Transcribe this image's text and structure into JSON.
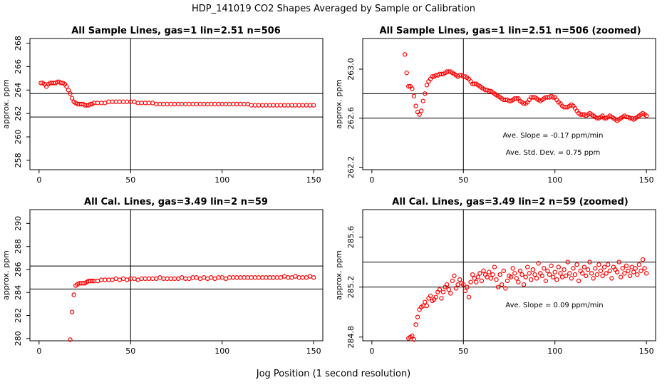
{
  "figure": {
    "title": "HDP_141019  CO2 Shapes Averaged by Sample or Calibration",
    "xlabel": "Jog Position (1 second resolution)"
  },
  "chart_data": [
    {
      "type": "scatter",
      "title": "All Sample Lines, gas=1 lin=2.51 n=506",
      "xlabel": "",
      "ylabel": "approx. ppm",
      "xlim": [
        -5,
        155
      ],
      "ylim": [
        257.2,
        268.4
      ],
      "xticks": [
        0,
        50,
        100,
        150
      ],
      "yticks": [
        258,
        260,
        262,
        264,
        266,
        268
      ],
      "ytick_labels": [
        "258",
        "260",
        "262",
        "264",
        "266",
        "268"
      ],
      "vline": 50,
      "hlines": [
        261.7,
        263.7
      ],
      "color": "#ff0000",
      "series": {
        "x": [
          1,
          2,
          3,
          4,
          5,
          6,
          7,
          8,
          9,
          10,
          11,
          12,
          13,
          14,
          15,
          16,
          17,
          18,
          19,
          20,
          21,
          22,
          23,
          24,
          25,
          26,
          27,
          28,
          29,
          30,
          32,
          34,
          36,
          38,
          40,
          42,
          44,
          46,
          48,
          50,
          52,
          54,
          56,
          58,
          60,
          62,
          64,
          66,
          68,
          70,
          72,
          74,
          76,
          78,
          80,
          82,
          84,
          86,
          88,
          90,
          92,
          94,
          96,
          98,
          100,
          102,
          104,
          106,
          108,
          110,
          112,
          114,
          116,
          118,
          120,
          122,
          124,
          126,
          128,
          130,
          132,
          134,
          136,
          138,
          140,
          142,
          144,
          146,
          148,
          150
        ],
        "y": [
          264.6,
          264.6,
          264.5,
          264.3,
          264.5,
          264.6,
          264.6,
          264.6,
          264.6,
          264.7,
          264.7,
          264.6,
          264.6,
          264.5,
          264.3,
          264.0,
          263.7,
          263.3,
          263.0,
          262.9,
          262.8,
          262.8,
          262.8,
          262.8,
          262.7,
          262.7,
          262.7,
          262.8,
          262.8,
          262.9,
          262.9,
          262.9,
          262.9,
          263.0,
          263.0,
          263.0,
          263.0,
          263.0,
          263.0,
          263.0,
          263.0,
          262.9,
          262.9,
          262.9,
          262.9,
          262.9,
          262.8,
          262.8,
          262.8,
          262.8,
          262.8,
          262.8,
          262.8,
          262.8,
          262.8,
          262.8,
          262.8,
          262.8,
          262.8,
          262.8,
          262.8,
          262.8,
          262.8,
          262.8,
          262.8,
          262.8,
          262.8,
          262.8,
          262.8,
          262.8,
          262.8,
          262.8,
          262.7,
          262.7,
          262.7,
          262.7,
          262.7,
          262.7,
          262.7,
          262.7,
          262.7,
          262.7,
          262.7,
          262.7,
          262.7,
          262.7,
          262.7,
          262.7,
          262.7,
          262.7
        ]
      },
      "annotations": []
    },
    {
      "type": "scatter",
      "title": "All Sample Lines, gas=1 lin=2.51 n=506 (zoomed)",
      "xlabel": "",
      "ylabel": "approx. ppm",
      "xlim": [
        -5,
        155
      ],
      "ylim": [
        262.18,
        263.25
      ],
      "xticks": [
        0,
        50,
        100,
        150
      ],
      "yticks": [
        262.2,
        262.6,
        263.0
      ],
      "ytick_labels": [
        "262.2",
        "262.6",
        "263.0"
      ],
      "vline": 50,
      "hlines": [
        262.6,
        262.8
      ],
      "color": "#ff0000",
      "series": {
        "x": [
          18,
          19,
          20,
          21,
          22,
          23,
          24,
          25,
          26,
          27,
          28,
          29,
          30,
          31,
          32,
          33,
          34,
          35,
          36,
          37,
          38,
          39,
          40,
          41,
          42,
          43,
          44,
          45,
          46,
          47,
          48,
          49,
          50,
          51,
          52,
          53,
          54,
          55,
          56,
          57,
          58,
          59,
          60,
          61,
          62,
          63,
          64,
          65,
          66,
          67,
          68,
          69,
          70,
          71,
          72,
          73,
          74,
          75,
          76,
          77,
          78,
          79,
          80,
          81,
          82,
          83,
          84,
          85,
          86,
          87,
          88,
          89,
          90,
          91,
          92,
          93,
          94,
          95,
          96,
          97,
          98,
          99,
          100,
          101,
          102,
          103,
          104,
          105,
          106,
          107,
          108,
          109,
          110,
          111,
          112,
          113,
          114,
          115,
          116,
          117,
          118,
          119,
          120,
          121,
          122,
          123,
          124,
          125,
          126,
          127,
          128,
          129,
          130,
          131,
          132,
          133,
          134,
          135,
          136,
          137,
          138,
          139,
          140,
          141,
          142,
          143,
          144,
          145,
          146,
          147,
          148,
          149,
          150
        ],
        "y": [
          263.12,
          262.97,
          262.86,
          262.86,
          262.84,
          262.78,
          262.7,
          262.65,
          262.63,
          262.66,
          262.74,
          262.8,
          262.87,
          262.9,
          262.92,
          262.94,
          262.94,
          262.95,
          262.95,
          262.96,
          262.96,
          262.96,
          262.97,
          262.98,
          262.98,
          262.98,
          262.97,
          262.96,
          262.95,
          262.94,
          262.95,
          262.95,
          262.94,
          262.94,
          262.93,
          262.92,
          262.9,
          262.88,
          262.88,
          262.88,
          262.87,
          262.86,
          262.85,
          262.84,
          262.83,
          262.83,
          262.82,
          262.82,
          262.81,
          262.8,
          262.79,
          262.78,
          262.77,
          262.76,
          262.75,
          262.75,
          262.75,
          262.74,
          262.74,
          262.75,
          262.76,
          262.76,
          262.76,
          262.74,
          262.73,
          262.72,
          262.72,
          262.73,
          262.75,
          262.77,
          262.77,
          262.77,
          262.76,
          262.75,
          262.74,
          262.75,
          262.76,
          262.77,
          262.77,
          262.77,
          262.78,
          262.77,
          262.77,
          262.75,
          262.73,
          262.72,
          262.7,
          262.69,
          262.69,
          262.69,
          262.7,
          262.71,
          262.7,
          262.68,
          262.66,
          262.64,
          262.63,
          262.63,
          262.63,
          262.62,
          262.63,
          262.64,
          262.63,
          262.62,
          262.61,
          262.6,
          262.6,
          262.61,
          262.62,
          262.6,
          262.6,
          262.61,
          262.62,
          262.61,
          262.6,
          262.59,
          262.58,
          262.59,
          262.6,
          262.61,
          262.62,
          262.61,
          262.61,
          262.6,
          262.6,
          262.59,
          262.6,
          262.61,
          262.62,
          262.63,
          262.64,
          262.63,
          262.62
        ]
      },
      "annotations": [
        "Ave. Slope =  -0.17  ppm/min",
        "Ave. Std. Dev. =  0.75  ppm"
      ]
    },
    {
      "type": "scatter",
      "title": "All Cal. Lines, gas=3.49 lin=2 n=59",
      "xlabel": "",
      "ylabel": "approx. ppm",
      "xlim": [
        -5,
        155
      ],
      "ylim": [
        279.8,
        291.2
      ],
      "xticks": [
        0,
        50,
        100,
        150
      ],
      "yticks": [
        280,
        282,
        284,
        286,
        288,
        290
      ],
      "ytick_labels": [
        "280",
        "282",
        "284",
        "286",
        "288",
        "290"
      ],
      "vline": 50,
      "hlines": [
        284.3,
        286.3
      ],
      "color": "#ff0000",
      "series": {
        "x": [
          17,
          18,
          19,
          20,
          21,
          22,
          23,
          24,
          25,
          26,
          27,
          28,
          29,
          30,
          32,
          34,
          36,
          38,
          40,
          42,
          44,
          46,
          48,
          50,
          52,
          54,
          56,
          58,
          60,
          62,
          64,
          66,
          68,
          70,
          72,
          74,
          76,
          78,
          80,
          82,
          84,
          86,
          88,
          90,
          92,
          94,
          96,
          98,
          100,
          102,
          104,
          106,
          108,
          110,
          112,
          114,
          116,
          118,
          120,
          122,
          124,
          126,
          128,
          130,
          132,
          134,
          136,
          138,
          140,
          142,
          144,
          146,
          148,
          150
        ],
        "y": [
          279.9,
          282.3,
          283.8,
          284.6,
          284.7,
          284.8,
          284.8,
          284.8,
          284.8,
          284.9,
          285.0,
          285.0,
          285.0,
          285.0,
          285.0,
          285.1,
          285.1,
          285.1,
          285.1,
          285.2,
          285.1,
          285.2,
          285.1,
          285.2,
          285.2,
          285.1,
          285.2,
          285.2,
          285.2,
          285.2,
          285.2,
          285.3,
          285.2,
          285.2,
          285.2,
          285.2,
          285.2,
          285.3,
          285.2,
          285.2,
          285.3,
          285.3,
          285.2,
          285.3,
          285.2,
          285.3,
          285.2,
          285.3,
          285.3,
          285.2,
          285.3,
          285.3,
          285.3,
          285.3,
          285.3,
          285.3,
          285.3,
          285.3,
          285.3,
          285.3,
          285.3,
          285.3,
          285.3,
          285.3,
          285.3,
          285.4,
          285.3,
          285.3,
          285.4,
          285.3,
          285.3,
          285.3,
          285.4,
          285.3
        ]
      },
      "annotations": []
    },
    {
      "type": "scatter",
      "title": "All Cal. Lines, gas=3.49 lin=2 n=59 (zoomed)",
      "xlabel": "",
      "ylabel": "approx. ppm",
      "xlim": [
        -5,
        155
      ],
      "ylim": [
        284.77,
        285.82
      ],
      "xticks": [
        0,
        50,
        100,
        150
      ],
      "yticks": [
        284.8,
        285.2,
        285.6
      ],
      "ytick_labels": [
        "284.8",
        "285.2",
        "285.6"
      ],
      "vline": 50,
      "hlines": [
        285.2,
        285.4
      ],
      "color": "#ff0000",
      "series": {
        "x": [
          20,
          21,
          22,
          23,
          24,
          25,
          26,
          27,
          28,
          29,
          30,
          31,
          32,
          33,
          34,
          35,
          36,
          37,
          38,
          39,
          40,
          41,
          42,
          43,
          44,
          45,
          46,
          47,
          48,
          49,
          50,
          51,
          52,
          53,
          54,
          55,
          56,
          57,
          58,
          59,
          60,
          61,
          62,
          63,
          64,
          65,
          66,
          67,
          68,
          69,
          70,
          71,
          72,
          73,
          74,
          75,
          76,
          77,
          78,
          79,
          80,
          81,
          82,
          83,
          84,
          85,
          86,
          87,
          88,
          89,
          90,
          91,
          92,
          93,
          94,
          95,
          96,
          97,
          98,
          99,
          100,
          101,
          102,
          103,
          104,
          105,
          106,
          107,
          108,
          109,
          110,
          111,
          112,
          113,
          114,
          115,
          116,
          117,
          118,
          119,
          120,
          121,
          122,
          123,
          124,
          125,
          126,
          127,
          128,
          129,
          130,
          131,
          132,
          133,
          134,
          135,
          136,
          137,
          138,
          139,
          140,
          141,
          142,
          143,
          144,
          145,
          146,
          147,
          148,
          149,
          150
        ],
        "y": [
          284.79,
          284.8,
          284.81,
          284.78,
          284.9,
          284.96,
          285.02,
          285.04,
          285.05,
          285.08,
          285.05,
          285.11,
          285.13,
          285.09,
          285.1,
          285.12,
          285.16,
          285.18,
          285.11,
          285.16,
          285.2,
          285.22,
          285.18,
          285.15,
          285.25,
          285.29,
          285.19,
          285.22,
          285.26,
          285.23,
          285.22,
          285.17,
          285.2,
          285.12,
          285.24,
          285.3,
          285.27,
          285.24,
          285.28,
          285.31,
          285.25,
          285.33,
          285.3,
          285.28,
          285.32,
          285.27,
          285.3,
          285.36,
          285.26,
          285.2,
          285.3,
          285.22,
          285.33,
          285.19,
          285.25,
          285.29,
          285.28,
          285.35,
          285.31,
          285.27,
          285.24,
          285.33,
          285.3,
          285.22,
          285.28,
          285.36,
          285.31,
          285.26,
          285.34,
          285.3,
          285.27,
          285.39,
          285.31,
          285.29,
          285.35,
          285.25,
          285.33,
          285.3,
          285.37,
          285.28,
          285.32,
          285.26,
          285.36,
          285.31,
          285.28,
          285.34,
          285.29,
          285.4,
          285.31,
          285.27,
          285.35,
          285.3,
          285.38,
          285.25,
          285.33,
          285.31,
          285.36,
          285.29,
          285.34,
          285.4,
          285.31,
          285.27,
          285.35,
          285.3,
          285.38,
          285.33,
          285.29,
          285.36,
          285.31,
          285.38,
          285.33,
          285.27,
          285.36,
          285.34,
          285.32,
          285.4,
          285.28,
          285.35,
          285.31,
          285.37,
          285.33,
          285.29,
          285.36,
          285.32,
          285.35,
          285.3,
          285.38,
          285.33,
          285.42,
          285.35,
          285.31
        ]
      },
      "annotations": [
        "Ave. Slope =  0.09  ppm/min"
      ]
    }
  ]
}
